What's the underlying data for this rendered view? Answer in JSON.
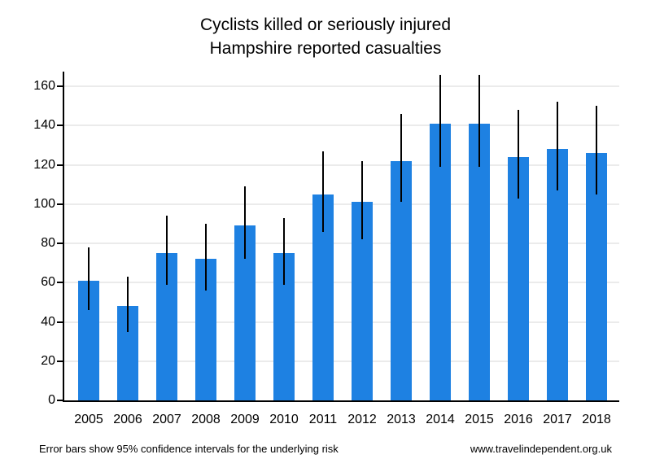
{
  "title": {
    "line1": "Cyclists killed or seriously injured",
    "line2": "Hampshire reported casualties"
  },
  "footer": {
    "left": "Error bars show 95% confidence intervals for the underlying risk",
    "right": "www.travelindependent.org.uk"
  },
  "colors": {
    "bar": "#1e81e2",
    "gridline": "#ebebeb",
    "axis": "#000000",
    "error_bar": "#000000",
    "background": "#ffffff"
  },
  "chart_data": {
    "type": "bar",
    "title": "Cyclists killed or seriously injured",
    "subtitle": "Hampshire reported casualties",
    "categories": [
      "2005",
      "2006",
      "2007",
      "2008",
      "2009",
      "2010",
      "2011",
      "2012",
      "2013",
      "2014",
      "2015",
      "2016",
      "2017",
      "2018"
    ],
    "values": [
      61,
      48,
      75,
      72,
      89,
      75,
      105,
      101,
      122,
      141,
      141,
      124,
      128,
      126
    ],
    "error_low": [
      46,
      35,
      59,
      56,
      72,
      59,
      86,
      82,
      101,
      119,
      119,
      103,
      107,
      105
    ],
    "error_high": [
      78,
      63,
      94,
      90,
      109,
      93,
      127,
      122,
      146,
      166,
      166,
      148,
      152,
      150
    ],
    "error_bars": "95% confidence intervals",
    "xlabel": "",
    "ylabel": "",
    "ylim": [
      0,
      167.5
    ],
    "yticks": [
      0,
      20,
      40,
      60,
      80,
      100,
      120,
      140,
      160
    ],
    "grid": "horizontal",
    "legend": "none"
  }
}
